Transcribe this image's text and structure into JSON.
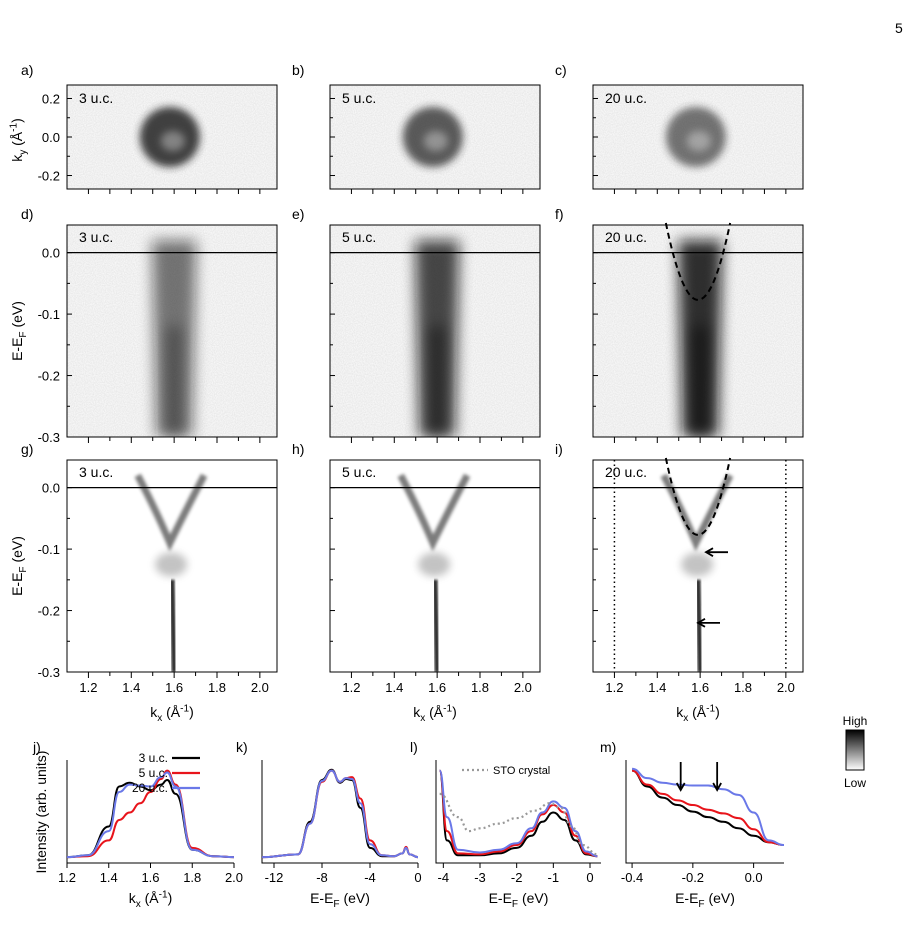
{
  "page_number": "5",
  "panel_letters": [
    "a)",
    "b)",
    "c)",
    "d)",
    "e)",
    "f)",
    "g)",
    "h)",
    "i)",
    "j)",
    "k)",
    "l)",
    "m)"
  ],
  "thickness_labels": [
    "3 u.c.",
    "5 u.c.",
    "20 u.c."
  ],
  "axes": {
    "ky_label": "k",
    "ky_sub": "y",
    "ky_unit": " (Å",
    "ky_exp": "-1",
    "ky_close": ")",
    "ky_ticks": [
      "0.2",
      "0.0",
      "-0.2"
    ],
    "energy_label": "E-E",
    "energy_sub": "F",
    "energy_unit": " (eV)",
    "energy_ticks": [
      "0.0",
      "-0.1",
      "-0.2",
      "-0.3"
    ],
    "kx_label": "k",
    "kx_sub": "x",
    "kx_unit": " (Å",
    "kx_exp": "-1",
    "kx_close": ")",
    "kx_ticks": [
      "1.2",
      "1.4",
      "1.6",
      "1.8",
      "2.0"
    ],
    "intensity_label": "Intensity (arb. units)"
  },
  "colorbar": {
    "high": "High",
    "low": "Low"
  },
  "colors": {
    "3uc": "#000000",
    "5uc": "#e8141b",
    "20uc": "#6a78e8",
    "sto": "#999999"
  },
  "chart_data": [
    {
      "panel": "j)",
      "type": "line",
      "xlabel": "k_x (Å^-1)",
      "ylabel": "Intensity (arb. units)",
      "xlim": [
        1.2,
        2.0
      ],
      "x_ticks": [
        "1.2",
        "1.4",
        "1.6",
        "1.8",
        "2.0"
      ],
      "legend": "top-right",
      "series": [
        {
          "name": "3 u.c.",
          "x": [
            1.2,
            1.3,
            1.4,
            1.45,
            1.5,
            1.55,
            1.6,
            1.65,
            1.68,
            1.72,
            1.8,
            1.9,
            2.0
          ],
          "values": [
            0.02,
            0.04,
            0.35,
            0.78,
            0.82,
            0.78,
            0.74,
            0.8,
            0.85,
            0.7,
            0.1,
            0.03,
            0.02
          ]
        },
        {
          "name": "5 u.c.",
          "x": [
            1.2,
            1.3,
            1.4,
            1.45,
            1.5,
            1.55,
            1.6,
            1.65,
            1.68,
            1.72,
            1.8,
            1.9,
            2.0
          ],
          "values": [
            0.02,
            0.03,
            0.2,
            0.42,
            0.5,
            0.6,
            0.72,
            0.86,
            0.95,
            0.8,
            0.12,
            0.03,
            0.02
          ]
        },
        {
          "name": "20 u.c.",
          "x": [
            1.2,
            1.3,
            1.4,
            1.45,
            1.5,
            1.55,
            1.6,
            1.65,
            1.68,
            1.72,
            1.8,
            1.9,
            2.0
          ],
          "values": [
            0.02,
            0.04,
            0.3,
            0.72,
            0.8,
            0.79,
            0.78,
            0.88,
            0.93,
            0.78,
            0.1,
            0.03,
            0.02
          ]
        }
      ]
    },
    {
      "panel": "k)",
      "type": "line",
      "xlabel": "E-E_F (eV)",
      "xlim": [
        -13,
        0
      ],
      "x_ticks": [
        "-12",
        "-8",
        "-4",
        "0"
      ],
      "series": [
        {
          "name": "3 u.c.",
          "x": [
            -13,
            -10,
            -9,
            -8,
            -7.2,
            -6.5,
            -6,
            -5.5,
            -4.8,
            -4,
            -3,
            -2,
            -1.3,
            -1,
            -0.7,
            0
          ],
          "values": [
            0.02,
            0.05,
            0.4,
            0.85,
            0.96,
            0.82,
            0.86,
            0.85,
            0.55,
            0.12,
            0.03,
            0.03,
            0.06,
            0.12,
            0.05,
            0.02
          ]
        },
        {
          "name": "5 u.c.",
          "x": [
            -13,
            -10,
            -9,
            -8,
            -7.2,
            -6.5,
            -6,
            -5.5,
            -4.8,
            -4,
            -3,
            -2,
            -1.3,
            -1,
            -0.7,
            0
          ],
          "values": [
            0.02,
            0.05,
            0.38,
            0.83,
            0.95,
            0.83,
            0.87,
            0.88,
            0.65,
            0.2,
            0.04,
            0.03,
            0.06,
            0.13,
            0.05,
            0.02
          ]
        },
        {
          "name": "20 u.c.",
          "x": [
            -13,
            -10,
            -9,
            -8,
            -7.2,
            -6.5,
            -6,
            -5.5,
            -4.8,
            -4,
            -3,
            -2,
            -1.3,
            -1,
            -0.7,
            0
          ],
          "values": [
            0.02,
            0.05,
            0.38,
            0.84,
            0.95,
            0.83,
            0.87,
            0.86,
            0.6,
            0.16,
            0.04,
            0.03,
            0.06,
            0.12,
            0.05,
            0.02
          ]
        }
      ]
    },
    {
      "panel": "l)",
      "type": "line",
      "xlabel": "E-E_F (eV)",
      "xlim": [
        -4.2,
        0.3
      ],
      "x_ticks": [
        "-4",
        "-3",
        "-2",
        "-1",
        "0"
      ],
      "legend": "top-right",
      "series": [
        {
          "name": "3 u.c.",
          "x": [
            -4.1,
            -3.9,
            -3.6,
            -3,
            -2.5,
            -2,
            -1.6,
            -1.3,
            -1,
            -0.7,
            -0.4,
            -0.1,
            0.2
          ],
          "values": [
            0.95,
            0.2,
            0.04,
            0.04,
            0.06,
            0.12,
            0.25,
            0.4,
            0.5,
            0.42,
            0.2,
            0.05,
            0.03
          ]
        },
        {
          "name": "5 u.c.",
          "x": [
            -4.1,
            -3.9,
            -3.6,
            -3,
            -2.5,
            -2,
            -1.6,
            -1.3,
            -1,
            -0.7,
            -0.4,
            -0.1,
            0.2
          ],
          "values": [
            0.95,
            0.3,
            0.06,
            0.05,
            0.08,
            0.15,
            0.3,
            0.48,
            0.58,
            0.5,
            0.25,
            0.06,
            0.03
          ]
        },
        {
          "name": "20 u.c.",
          "x": [
            -4.1,
            -3.9,
            -3.6,
            -3,
            -2.5,
            -2,
            -1.6,
            -1.3,
            -1,
            -0.7,
            -0.4,
            -0.1,
            0.2
          ],
          "values": [
            0.95,
            0.45,
            0.1,
            0.07,
            0.1,
            0.17,
            0.33,
            0.5,
            0.62,
            0.55,
            0.3,
            0.08,
            0.03
          ]
        },
        {
          "name": "STO crystal",
          "x": [
            -4.1,
            -3.6,
            -3.3,
            -3,
            -2.5,
            -2,
            -1.5,
            -1.1,
            -0.8,
            -0.5,
            -0.2,
            0.2
          ],
          "values": [
            0.7,
            0.45,
            0.3,
            0.33,
            0.38,
            0.44,
            0.52,
            0.6,
            0.55,
            0.35,
            0.15,
            0.05
          ]
        }
      ]
    },
    {
      "panel": "m)",
      "type": "line",
      "xlabel": "E-E_F (eV)",
      "xlim": [
        -0.42,
        0.1
      ],
      "x_ticks": [
        "-0.4",
        "-0.2",
        "0.0"
      ],
      "annotations": [
        "arrow at -0.24 eV",
        "arrow at -0.12 eV"
      ],
      "series": [
        {
          "name": "3 u.c.",
          "x": [
            -0.4,
            -0.35,
            -0.3,
            -0.25,
            -0.2,
            -0.15,
            -0.1,
            -0.05,
            0,
            0.05,
            0.1
          ],
          "values": [
            0.95,
            0.78,
            0.66,
            0.58,
            0.51,
            0.45,
            0.4,
            0.33,
            0.25,
            0.18,
            0.15
          ]
        },
        {
          "name": "5 u.c.",
          "x": [
            -0.4,
            -0.35,
            -0.3,
            -0.25,
            -0.2,
            -0.15,
            -0.1,
            -0.05,
            0,
            0.05,
            0.1
          ],
          "values": [
            0.95,
            0.8,
            0.7,
            0.63,
            0.58,
            0.53,
            0.49,
            0.44,
            0.32,
            0.18,
            0.15
          ]
        },
        {
          "name": "20 u.c.",
          "x": [
            -0.4,
            -0.35,
            -0.3,
            -0.25,
            -0.2,
            -0.15,
            -0.1,
            -0.05,
            0,
            0.05,
            0.1
          ],
          "values": [
            0.97,
            0.87,
            0.82,
            0.8,
            0.79,
            0.79,
            0.75,
            0.69,
            0.5,
            0.2,
            0.15
          ]
        }
      ]
    }
  ]
}
